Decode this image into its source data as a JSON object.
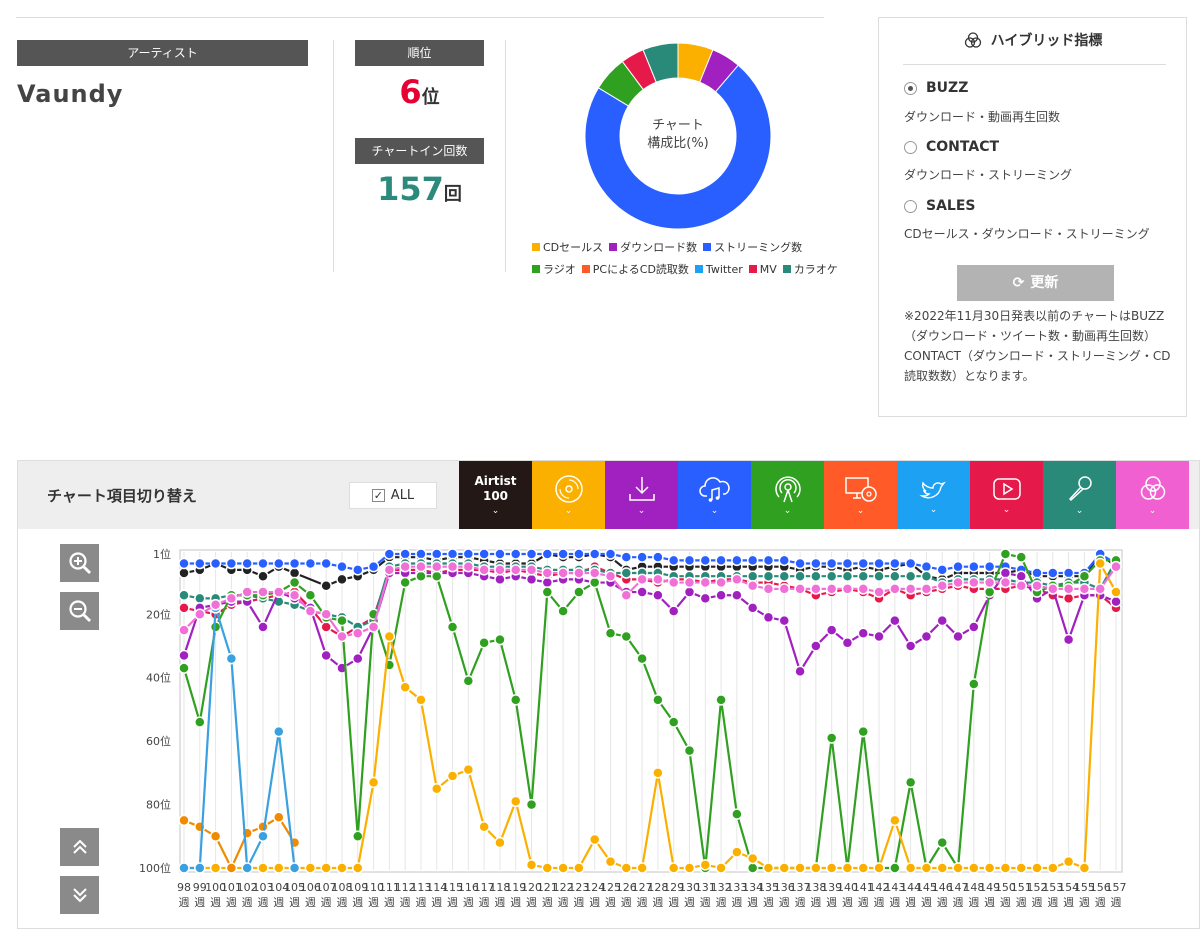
{
  "artist": {
    "header_label": "アーティスト",
    "name": "Vaundy"
  },
  "rank": {
    "header_label": "順位",
    "value": "6",
    "unit": "位"
  },
  "chart_in": {
    "header_label": "チャートイン回数",
    "value": "157",
    "unit": "回"
  },
  "donut": {
    "center_line1": "チャート",
    "center_line2": "構成比(%)",
    "legend": [
      {
        "label": "CDセールス",
        "color": "#fbb000"
      },
      {
        "label": "ダウンロード数",
        "color": "#a020c0"
      },
      {
        "label": "ストリーミング数",
        "color": "#2a5fff"
      },
      {
        "label": "ラジオ",
        "color": "#30a020"
      },
      {
        "label": "PCによるCD読取数",
        "color": "#ff5a28"
      },
      {
        "label": "Twitter",
        "color": "#1da1f2"
      },
      {
        "label": "MV",
        "color": "#e6194b"
      },
      {
        "label": "カラオケ",
        "color": "#2a8a7a"
      }
    ]
  },
  "hybrid": {
    "title": "ハイブリッド指標",
    "options": [
      {
        "label": "BUZZ",
        "desc": "ダウンロード・動画再生回数",
        "selected": true
      },
      {
        "label": "CONTACT",
        "desc": "ダウンロード・ストリーミング",
        "selected": false
      },
      {
        "label": "SALES",
        "desc": "CDセールス・ダウンロード・ストリーミング",
        "selected": false
      }
    ],
    "update_label": "更新",
    "note": "※2022年11月30日発表以前のチャートはBUZZ（ダウンロード・ツイート数・動画再生回数）CONTACT（ダウンロード・ストリーミング・CD読取数数）となります。"
  },
  "panel": {
    "title": "チャート項目切り替え",
    "all_label": "ALL",
    "airtist_line1": "Airtist",
    "airtist_line2": "100",
    "tabs": [
      {
        "name": "cd-sales",
        "color": "#fbb000",
        "icon": "disc-icon"
      },
      {
        "name": "download",
        "color": "#a020c0",
        "icon": "download-icon"
      },
      {
        "name": "streaming",
        "color": "#2a5fff",
        "icon": "cloud-music-icon"
      },
      {
        "name": "radio",
        "color": "#30a020",
        "icon": "radio-icon"
      },
      {
        "name": "pc-cd-read",
        "color": "#ff5a28",
        "icon": "pc-disc-icon"
      },
      {
        "name": "twitter",
        "color": "#1da1f2",
        "icon": "twitter-icon"
      },
      {
        "name": "mv",
        "color": "#e6194b",
        "icon": "play-icon"
      },
      {
        "name": "karaoke",
        "color": "#2a8a7a",
        "icon": "microphone-icon"
      },
      {
        "name": "hybrid",
        "color": "#f060d0",
        "icon": "hybrid-icon"
      }
    ]
  },
  "chart_data": [
    {
      "type": "pie",
      "categories": [
        "CDセールス",
        "ダウンロード数",
        "ストリーミング数",
        "ラジオ",
        "PCによるCD読取数",
        "Twitter",
        "MV",
        "カラオケ"
      ],
      "values": [
        6,
        5,
        71,
        6,
        0,
        0,
        4,
        6
      ]
    },
    {
      "type": "line",
      "ylim": [
        100,
        1
      ],
      "y_ticks": [
        "1位",
        "20位",
        "40位",
        "60位",
        "80位",
        "100位"
      ],
      "x_tick_suffix": "週",
      "x": [
        98,
        99,
        100,
        101,
        102,
        103,
        104,
        105,
        106,
        107,
        108,
        109,
        110,
        111,
        112,
        113,
        114,
        115,
        116,
        117,
        118,
        119,
        120,
        121,
        122,
        123,
        124,
        125,
        126,
        127,
        128,
        129,
        130,
        131,
        132,
        133,
        134,
        135,
        136,
        137,
        138,
        139,
        140,
        141,
        142,
        143,
        144,
        145,
        146,
        147,
        148,
        149,
        150,
        151,
        152,
        153,
        154,
        155,
        156,
        157
      ],
      "series": [
        {
          "name": "Airtist 100",
          "color": "#222222",
          "values": [
            7,
            6,
            4,
            6,
            6,
            8,
            5,
            7,
            null,
            11,
            9,
            8,
            6,
            2,
            2,
            2,
            3,
            2,
            2,
            3,
            4,
            4,
            4,
            1,
            2,
            2,
            1,
            2,
            6,
            5,
            5,
            5,
            5,
            5,
            5,
            5,
            5,
            5,
            5,
            6,
            5,
            5,
            6,
            5,
            6,
            5,
            4,
            8,
            9,
            7,
            7,
            7,
            7,
            6,
            8,
            8,
            8,
            8,
            1,
            5
          ]
        },
        {
          "name": "ストリーミング数",
          "color": "#2a5fff",
          "values": [
            4,
            4,
            4,
            4,
            4,
            4,
            4,
            4,
            4,
            4,
            5,
            6,
            5,
            1,
            1,
            1,
            1,
            1,
            1,
            1,
            1,
            1,
            1,
            1,
            1,
            1,
            1,
            1,
            2,
            2,
            2,
            3,
            3,
            3,
            3,
            3,
            3,
            3,
            3,
            4,
            4,
            4,
            4,
            4,
            4,
            4,
            4,
            5,
            6,
            5,
            5,
            5,
            5,
            6,
            7,
            7,
            7,
            7,
            1,
            4
          ]
        },
        {
          "name": "MV",
          "color": "#e6194b",
          "values": [
            18,
            19,
            20,
            17,
            16,
            15,
            14,
            13,
            18,
            24,
            27,
            24,
            21,
            6,
            6,
            6,
            7,
            6,
            6,
            6,
            7,
            6,
            7,
            8,
            7,
            7,
            5,
            7,
            9,
            9,
            10,
            9,
            9,
            10,
            9,
            9,
            10,
            10,
            11,
            12,
            14,
            13,
            12,
            13,
            15,
            12,
            14,
            13,
            12,
            11,
            12,
            12,
            12,
            11,
            12,
            14,
            15,
            14,
            14,
            18
          ]
        },
        {
          "name": "カラオケ",
          "color": "#2a8a7a",
          "values": [
            14,
            15,
            15,
            14,
            14,
            15,
            16,
            17,
            19,
            20,
            21,
            24,
            22,
            5,
            4,
            4,
            4,
            4,
            4,
            5,
            5,
            5,
            5,
            6,
            6,
            6,
            6,
            7,
            7,
            7,
            7,
            8,
            8,
            8,
            8,
            8,
            8,
            8,
            8,
            8,
            8,
            8,
            8,
            8,
            8,
            8,
            8,
            8,
            10,
            9,
            9,
            9,
            9,
            10,
            10,
            11,
            10,
            10,
            12,
            3
          ]
        },
        {
          "name": "ダウンロード数",
          "color": "#a020c0",
          "values": [
            33,
            18,
            17,
            16,
            16,
            24,
            13,
            15,
            18,
            33,
            37,
            34,
            24,
            7,
            7,
            7,
            7,
            7,
            7,
            8,
            9,
            8,
            9,
            10,
            9,
            9,
            10,
            10,
            13,
            13,
            14,
            19,
            13,
            15,
            14,
            14,
            18,
            21,
            22,
            38,
            30,
            25,
            29,
            26,
            27,
            22,
            30,
            27,
            22,
            27,
            24,
            14,
            7,
            8,
            15,
            12,
            28,
            14,
            14,
            16
          ]
        },
        {
          "name": "ラジオ",
          "color": "#30a020",
          "values": [
            37,
            54,
            24,
            14,
            14,
            14,
            13,
            10,
            14,
            21,
            22,
            90,
            20,
            36,
            10,
            8,
            8,
            24,
            41,
            29,
            28,
            47,
            80,
            13,
            19,
            13,
            10,
            26,
            27,
            34,
            47,
            54,
            63,
            100,
            47,
            83,
            100,
            100,
            100,
            100,
            100,
            59,
            100,
            57,
            100,
            100,
            73,
            100,
            92,
            100,
            42,
            13,
            1,
            2,
            13,
            11,
            11,
            8,
            3,
            3
          ]
        },
        {
          "name": "CDセールス",
          "color": "#fbb000",
          "values": [
            100,
            100,
            100,
            100,
            100,
            100,
            100,
            100,
            100,
            100,
            100,
            100,
            73,
            27,
            43,
            47,
            75,
            71,
            69,
            87,
            92,
            79,
            99,
            100,
            100,
            100,
            91,
            98,
            100,
            100,
            70,
            100,
            100,
            99,
            100,
            95,
            97,
            100,
            100,
            100,
            100,
            100,
            100,
            100,
            100,
            85,
            100,
            100,
            100,
            100,
            100,
            100,
            100,
            100,
            100,
            100,
            98,
            100,
            4,
            13
          ]
        },
        {
          "name": "PCによるCD読取数",
          "color": "#f08a00",
          "values": [
            85,
            87,
            90,
            100,
            89,
            87,
            84,
            92,
            null,
            null,
            null,
            null,
            null,
            null,
            null,
            null,
            null,
            null,
            null,
            null,
            null,
            null,
            null,
            null,
            null,
            null,
            null,
            null,
            null,
            null,
            null,
            null,
            null,
            null,
            null,
            null,
            null,
            null,
            null,
            null,
            null,
            null,
            null,
            null,
            null,
            null,
            null,
            null,
            null,
            null,
            null,
            null,
            null,
            null,
            null,
            null,
            null,
            null,
            null,
            null
          ]
        },
        {
          "name": "Twitter",
          "color": "#3aa0e0",
          "values": [
            100,
            100,
            18,
            34,
            100,
            90,
            57,
            100,
            null,
            null,
            null,
            null,
            null,
            null,
            null,
            null,
            null,
            null,
            null,
            null,
            null,
            null,
            null,
            null,
            null,
            null,
            null,
            null,
            null,
            null,
            null,
            null,
            null,
            null,
            null,
            null,
            null,
            null,
            null,
            null,
            null,
            null,
            null,
            null,
            null,
            null,
            null,
            null,
            null,
            null,
            null,
            null,
            null,
            null,
            null,
            null,
            null,
            null,
            null,
            null
          ]
        },
        {
          "name": "ハイブリッド",
          "color": "#f070d8",
          "values": [
            25,
            20,
            17,
            15,
            13,
            13,
            13,
            14,
            19,
            20,
            27,
            26,
            24,
            6,
            5,
            5,
            5,
            5,
            5,
            6,
            6,
            6,
            6,
            7,
            7,
            7,
            7,
            8,
            14,
            9,
            9,
            10,
            10,
            10,
            10,
            9,
            11,
            12,
            12,
            12,
            12,
            12,
            12,
            12,
            13,
            12,
            12,
            12,
            11,
            10,
            10,
            10,
            10,
            11,
            11,
            12,
            12,
            12,
            12,
            5
          ]
        }
      ]
    }
  ]
}
